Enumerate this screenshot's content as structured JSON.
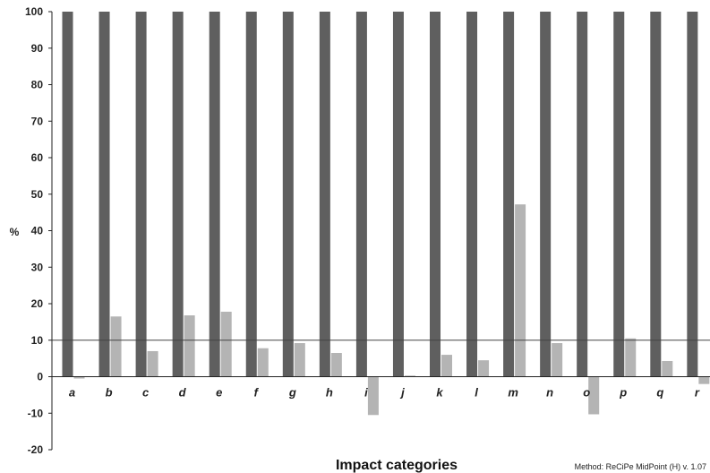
{
  "chart_data": {
    "type": "bar",
    "categories": [
      "a",
      "b",
      "c",
      "d",
      "e",
      "f",
      "g",
      "h",
      "i",
      "j",
      "k",
      "l",
      "m",
      "n",
      "o",
      "p",
      "q",
      "r"
    ],
    "series": [
      {
        "values": [
          100,
          100,
          100,
          100,
          100,
          100,
          100,
          100,
          100,
          100,
          100,
          100,
          100,
          100,
          100,
          100,
          100,
          100
        ],
        "color": "#5f5f5f"
      },
      {
        "values": [
          -0.5,
          16.5,
          7,
          16.8,
          17.8,
          7.8,
          9.2,
          6.5,
          -10.5,
          0.3,
          6,
          4.5,
          47.2,
          9.2,
          -10.3,
          10.5,
          4.3,
          -2
        ],
        "color": "#b4b4b4"
      }
    ],
    "xlabel": "Impact categories",
    "ylabel": "%",
    "ylim": [
      -20,
      100
    ],
    "yticks": [
      -20,
      -10,
      0,
      10,
      20,
      30,
      40,
      50,
      60,
      70,
      80,
      90,
      100
    ],
    "reference_line": 10,
    "grid": false,
    "note": "Method: ReCiPe MidPoint (H) v. 1.07"
  }
}
